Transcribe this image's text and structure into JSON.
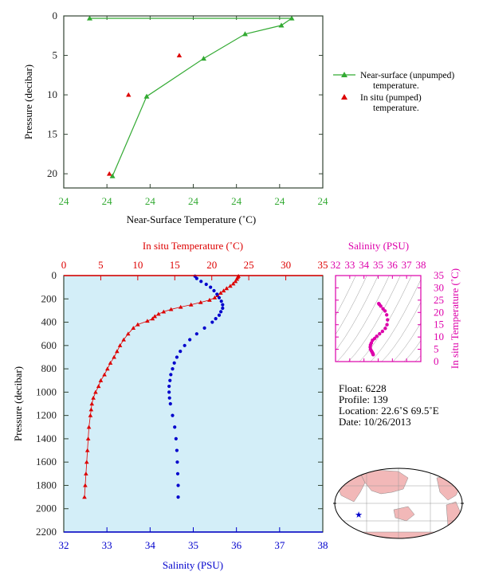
{
  "colors": {
    "green": "#33aa33",
    "red": "#dd0000",
    "blue": "#0000cc",
    "magenta": "#dd00aa",
    "axis_dark": "#334433",
    "panel_bg": "#d3eef8",
    "land": "#f2b8b8"
  },
  "footer_id": "",
  "chart_data": [
    {
      "type": "line",
      "title": "",
      "xlabel": "Near-Surface Temperature (˚C)",
      "ylabel": "Pressure (decibar)",
      "x_tick_labels": [
        "24",
        "24",
        "24",
        "24",
        "24",
        "24",
        "24"
      ],
      "y_ticks": [
        "0",
        "5",
        "10",
        "15",
        "20"
      ],
      "ylim": [
        0,
        21.8
      ],
      "xlim": [
        23.6,
        24.1
      ],
      "legend": [
        {
          "label": "Near-surface (unpumped)",
          "label2": "temperature."
        },
        {
          "label": "In situ (pumped)",
          "label2": "temperature."
        }
      ],
      "series": [
        {
          "name": "Near-surface (unpumped) temperature.",
          "x": [
            23.65,
            24.04,
            24.02,
            23.95,
            23.87,
            23.76,
            23.694
          ],
          "y": [
            0.3,
            0.3,
            1.2,
            2.3,
            5.4,
            10.2,
            20.3
          ]
        },
        {
          "name": "In situ (pumped) temperature.",
          "x": [
            23.688,
            23.725,
            23.823
          ],
          "y": [
            20.0,
            10.0,
            5.0
          ]
        }
      ]
    },
    {
      "type": "scatter",
      "x_top_label": "In situ Temperature (˚C)",
      "x_bottom_label": "Salinity (PSU)",
      "ylabel": "Pressure (decibar)",
      "temp_ticks": [
        "0",
        "5",
        "10",
        "15",
        "20",
        "25",
        "30",
        "35"
      ],
      "sal_ticks": [
        "32",
        "33",
        "34",
        "35",
        "36",
        "37",
        "38"
      ],
      "y_ticks": [
        "0",
        "200",
        "400",
        "600",
        "800",
        "1000",
        "1200",
        "1400",
        "1600",
        "1800",
        "2000",
        "2200"
      ],
      "temp_xlim": [
        0,
        35
      ],
      "sal_xlim": [
        32,
        38
      ],
      "ylim": [
        0,
        2200
      ],
      "series": [
        {
          "name": "In situ Temperature",
          "pressure": [
            5,
            15,
            30,
            50,
            70,
            90,
            110,
            130,
            150,
            170,
            190,
            210,
            230,
            250,
            270,
            290,
            310,
            330,
            350,
            370,
            390,
            420,
            450,
            500,
            550,
            600,
            650,
            700,
            750,
            800,
            850,
            900,
            950,
            1000,
            1050,
            1100,
            1150,
            1200,
            1300,
            1400,
            1500,
            1600,
            1700,
            1800,
            1900
          ],
          "values": [
            23.6,
            23.5,
            23.4,
            23.2,
            22.9,
            22.5,
            22.0,
            21.6,
            21.2,
            20.8,
            20.4,
            19.7,
            18.5,
            17.2,
            15.8,
            14.5,
            13.5,
            12.8,
            12.3,
            12.0,
            11.3,
            10.0,
            9.4,
            8.7,
            8.1,
            7.6,
            7.2,
            6.8,
            6.3,
            5.9,
            5.5,
            5.0,
            4.7,
            4.3,
            4.0,
            3.8,
            3.7,
            3.6,
            3.4,
            3.3,
            3.2,
            3.1,
            3.0,
            2.9,
            2.8
          ]
        },
        {
          "name": "Salinity",
          "pressure": [
            5,
            25,
            50,
            75,
            100,
            130,
            160,
            190,
            220,
            250,
            280,
            310,
            340,
            370,
            400,
            450,
            500,
            550,
            600,
            650,
            700,
            750,
            800,
            850,
            900,
            950,
            1000,
            1050,
            1100,
            1200,
            1300,
            1400,
            1500,
            1600,
            1700,
            1800,
            1900
          ],
          "values": [
            35.04,
            35.08,
            35.18,
            35.3,
            35.4,
            35.48,
            35.55,
            35.6,
            35.65,
            35.68,
            35.68,
            35.64,
            35.6,
            35.52,
            35.44,
            35.26,
            35.08,
            34.92,
            34.8,
            34.7,
            34.62,
            34.56,
            34.52,
            34.48,
            34.46,
            34.44,
            34.44,
            34.45,
            34.47,
            34.52,
            34.57,
            34.6,
            34.62,
            34.63,
            34.64,
            34.65,
            34.65
          ]
        }
      ]
    },
    {
      "type": "scatter",
      "title": "Salinity (PSU)",
      "ylabel": "In situ Temperature (˚C)",
      "sal_ticks": [
        "32",
        "33",
        "34",
        "35",
        "36",
        "37",
        "38"
      ],
      "temp_ticks": [
        "0",
        "5",
        "10",
        "15",
        "20",
        "25",
        "30",
        "35"
      ],
      "xlim": [
        32,
        38
      ],
      "ylim": [
        0,
        35
      ],
      "salinity": [
        34.65,
        34.64,
        34.62,
        34.6,
        34.57,
        34.52,
        34.46,
        34.44,
        34.46,
        34.52,
        34.6,
        34.75,
        34.9,
        35.1,
        35.3,
        35.5,
        35.62,
        35.66,
        35.6,
        35.48,
        35.34,
        35.18,
        35.08,
        35.04
      ],
      "temperature": [
        2.8,
        3.0,
        3.3,
        3.6,
        3.9,
        4.4,
        5.0,
        5.9,
        6.8,
        7.6,
        8.7,
        9.4,
        10.3,
        11.3,
        12.3,
        13.5,
        15.0,
        17.0,
        19.0,
        20.6,
        21.5,
        22.6,
        23.3,
        23.6
      ]
    }
  ],
  "float_info": {
    "float": "Float:  6228",
    "profile": "Profile:  139",
    "location": "Location:  22.6˚S  69.5˚E",
    "date": "Date:  10/26/2013"
  }
}
